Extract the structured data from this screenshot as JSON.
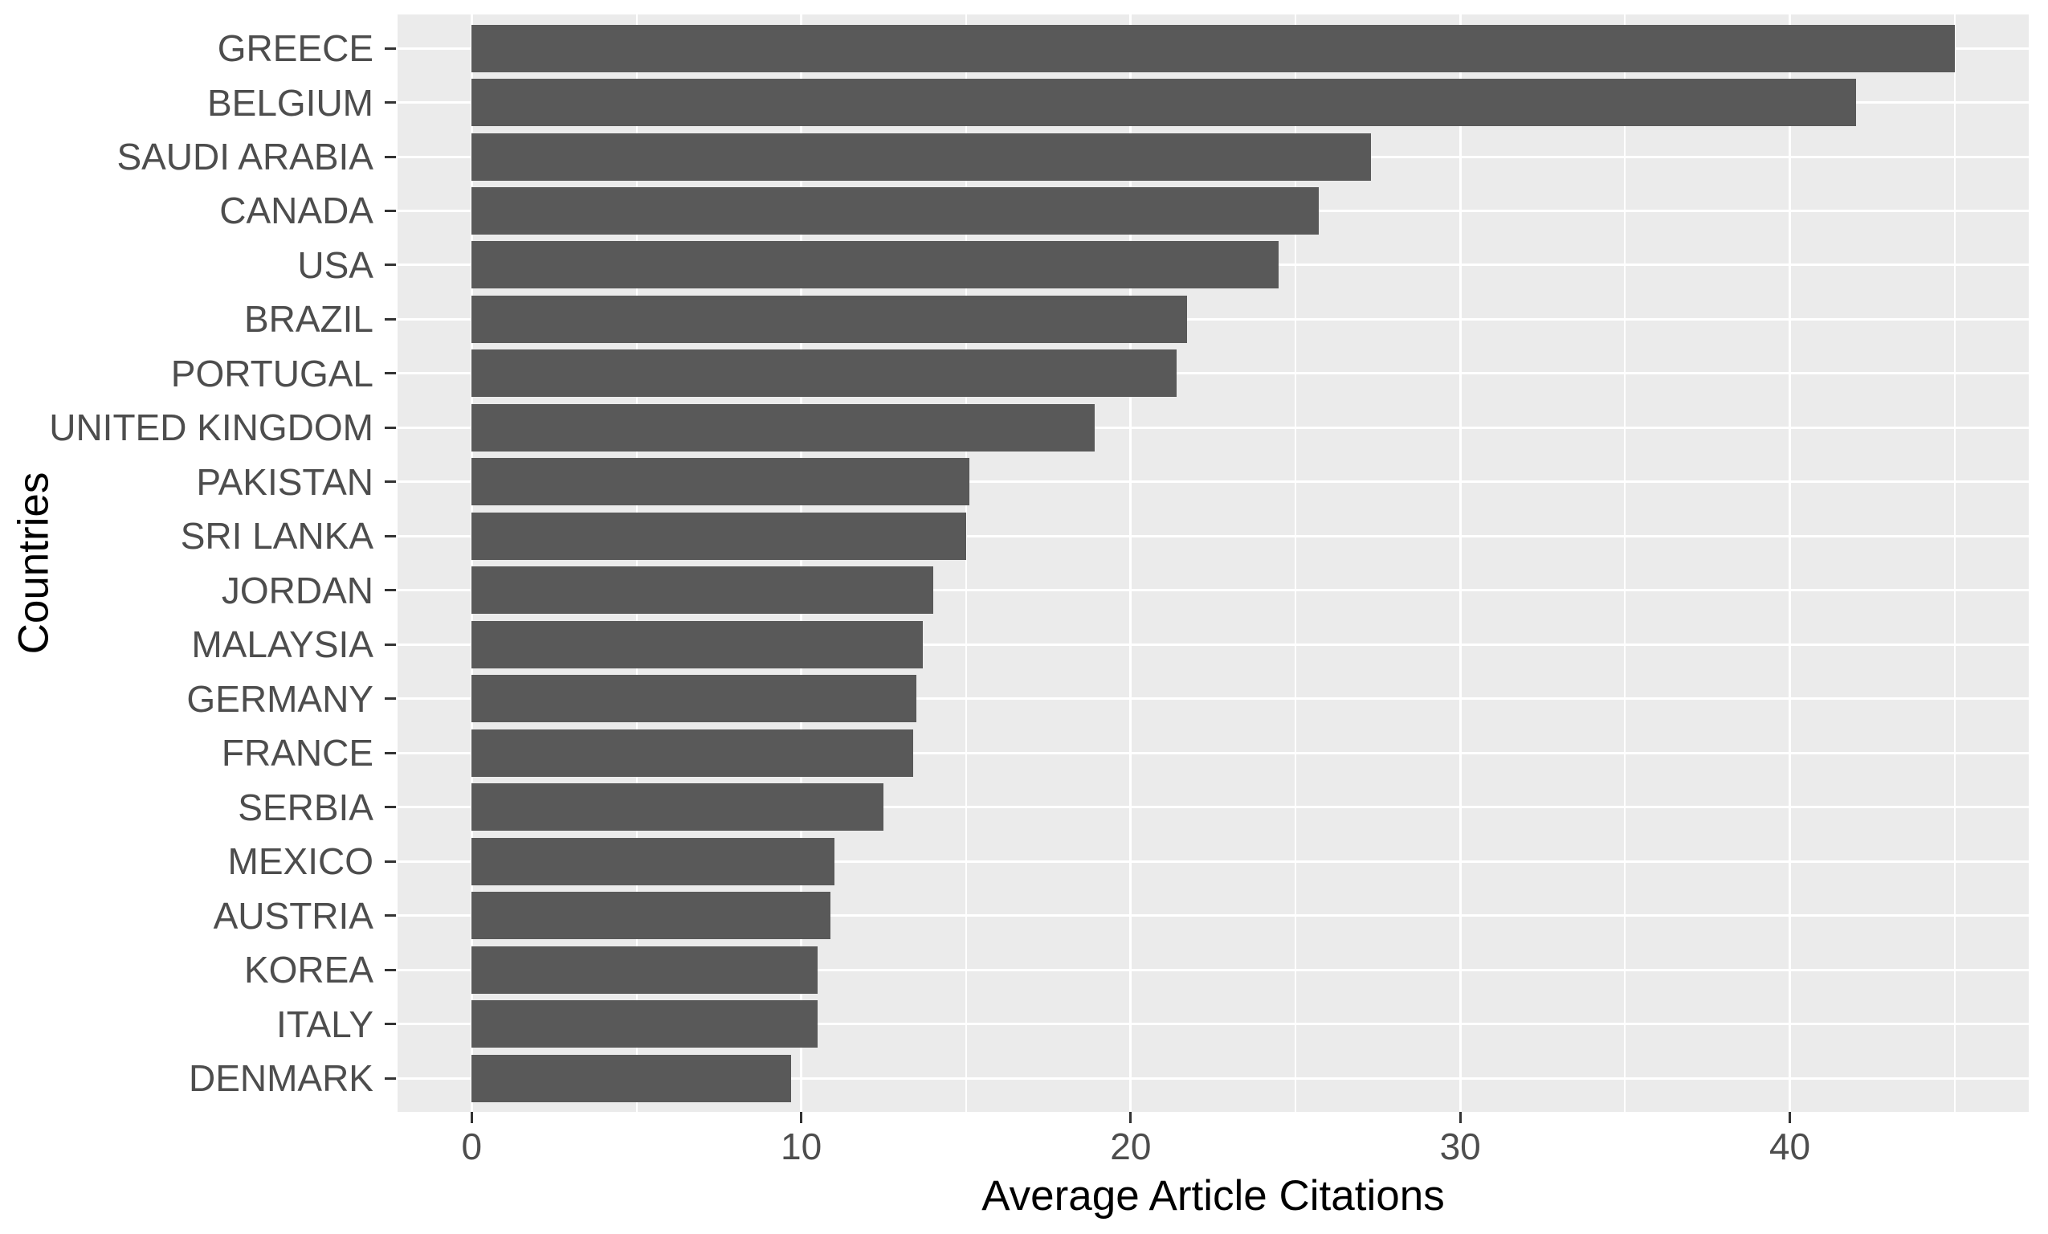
{
  "chart_data": {
    "type": "bar",
    "orientation": "horizontal",
    "title": "",
    "xlabel": "Average Article Citations",
    "ylabel": "Countries",
    "categories": [
      "GREECE",
      "BELGIUM",
      "SAUDI ARABIA",
      "CANADA",
      "USA",
      "BRAZIL",
      "PORTUGAL",
      "UNITED KINGDOM",
      "PAKISTAN",
      "SRI LANKA",
      "JORDAN",
      "MALAYSIA",
      "GERMANY",
      "FRANCE",
      "SERBIA",
      "MEXICO",
      "AUSTRIA",
      "KOREA",
      "ITALY",
      "DENMARK"
    ],
    "values": [
      45.0,
      42.0,
      27.3,
      25.7,
      24.5,
      21.7,
      21.4,
      18.9,
      15.1,
      15.0,
      14.0,
      13.7,
      13.5,
      13.4,
      12.5,
      11.0,
      10.9,
      10.5,
      10.5,
      9.7
    ],
    "x_axis": {
      "range": [
        -2.25,
        47.25
      ],
      "major_ticks": [
        0,
        10,
        20,
        30,
        40
      ],
      "major_tick_labels": [
        "0",
        "10",
        "20",
        "30",
        "40"
      ],
      "minor_ticks": [
        5,
        15,
        25,
        35,
        45
      ]
    },
    "legend_position": "none",
    "grid": "on",
    "colors": {
      "bar_fill": "#595959",
      "panel_background": "#EBEBEB",
      "gridline": "#FFFFFF",
      "tick_mark": "#333333",
      "axis_text": "#4D4D4D",
      "axis_title": "#000000",
      "figure_background": "#FFFFFF"
    }
  }
}
